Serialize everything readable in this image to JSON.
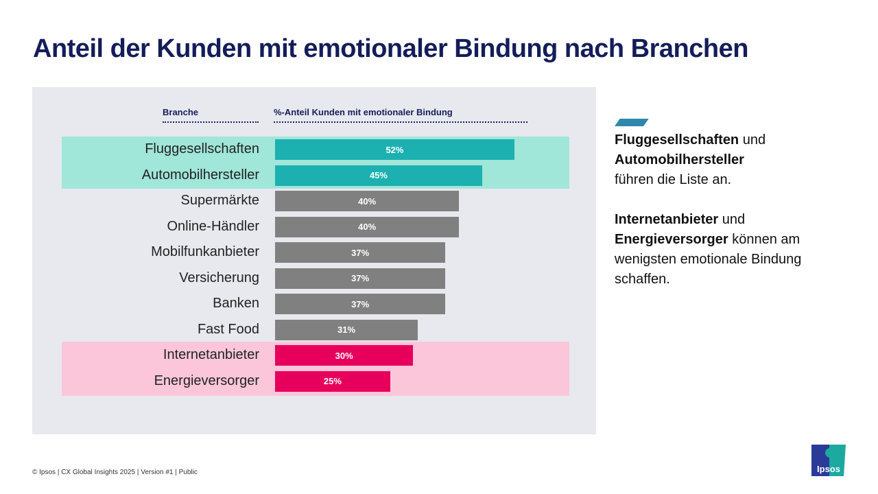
{
  "title": "Anteil der Kunden mit emotionaler Bindung nach Branchen",
  "chart_data": {
    "type": "bar",
    "orientation": "horizontal",
    "col_headers": [
      "Branche",
      "%-Anteil Kunden mit emotionaler Bindung"
    ],
    "categories": [
      "Fluggesellschaften",
      "Automobilhersteller",
      "Supermärkte",
      "Online-Händler",
      "Mobilfunkanbieter",
      "Versicherung",
      "Banken",
      "Fast Food",
      "Internetanbieter",
      "Energieversorger"
    ],
    "values": [
      52,
      45,
      40,
      40,
      37,
      37,
      37,
      31,
      30,
      25
    ],
    "labels": [
      "52%",
      "45%",
      "40%",
      "40%",
      "37%",
      "37%",
      "37%",
      "31%",
      "30%",
      "25%"
    ],
    "groups": [
      "top",
      "top",
      "mid",
      "mid",
      "mid",
      "mid",
      "mid",
      "mid",
      "low",
      "low"
    ],
    "colors": {
      "top": "#1cb0b0",
      "mid": "#808080",
      "low": "#e6005c",
      "top_bg": "#a0e6d9",
      "low_bg": "#fbc6da"
    }
  },
  "side": {
    "p1_b1": "Fluggesellschaften",
    "p1_t1": " und",
    "p1_b2": "Automobilhersteller",
    "p1_t2": "führen die Liste an.",
    "p2_b1": "Internetanbieter",
    "p2_t1": " und",
    "p2_b2": "Energieversorger",
    "p2_t2": " können am wenigsten emotionale Bindung schaffen."
  },
  "footer": "© Ipsos | CX Global Insights 2025 | Version #1 | Public",
  "logo": "Ipsos"
}
